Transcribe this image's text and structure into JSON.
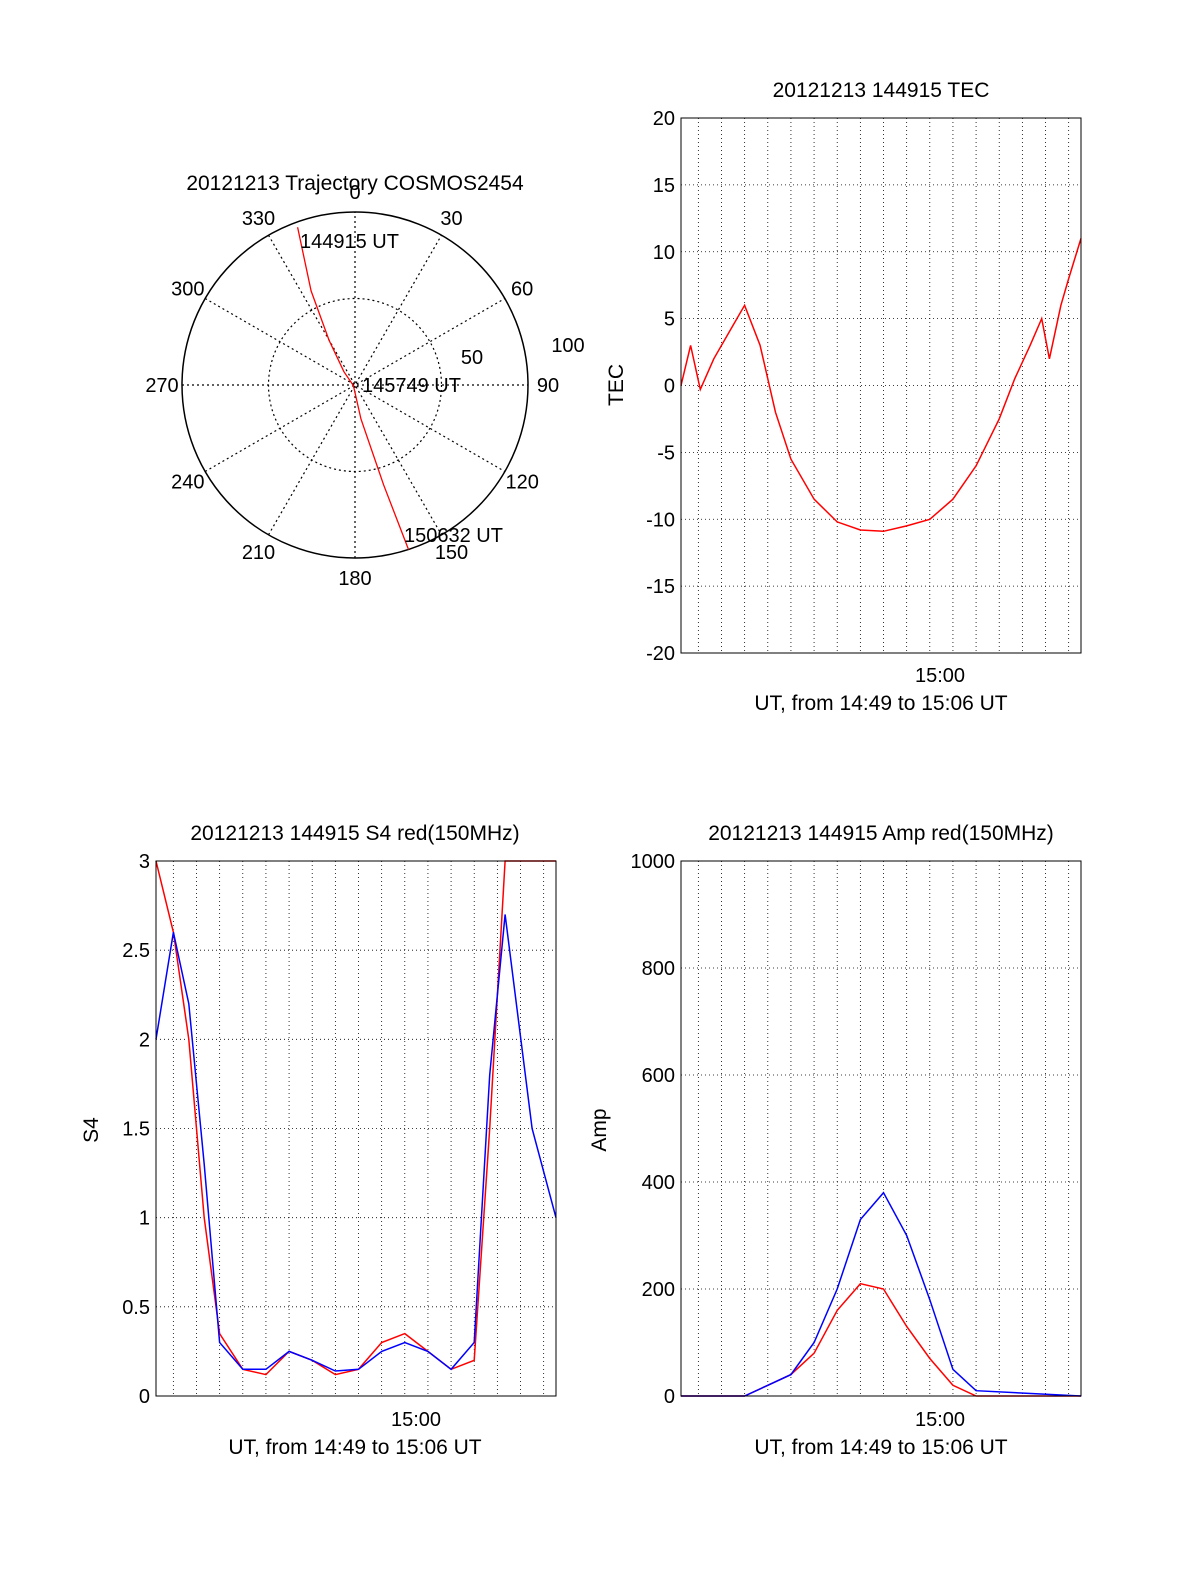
{
  "chart_data": [
    {
      "id": "polar",
      "type": "polar",
      "title": "20121213 Trajectory COSMOS2454",
      "angle_labels": [
        "0",
        "30",
        "60",
        "90",
        "120",
        "150",
        "180",
        "210",
        "240",
        "270",
        "300",
        "330"
      ],
      "radius_labels": [
        "50",
        "100"
      ],
      "trajectory": {
        "color": "#ff0000",
        "points": [
          {
            "azimuth": 340,
            "elevation_ring": 97
          },
          {
            "azimuth": 335,
            "elevation_ring": 60
          },
          {
            "azimuth": 330,
            "elevation_ring": 30
          },
          {
            "azimuth": 320,
            "elevation_ring": 10
          },
          {
            "azimuth": 250,
            "elevation_ring": 1
          },
          {
            "azimuth": 170,
            "elevation_ring": 20
          },
          {
            "azimuth": 164,
            "elevation_ring": 60
          },
          {
            "azimuth": 162,
            "elevation_ring": 100
          }
        ],
        "annotations": [
          {
            "text": "144915 UT"
          },
          {
            "text": "145749 UT"
          },
          {
            "text": "150632 UT"
          }
        ]
      }
    },
    {
      "id": "tec",
      "type": "line",
      "title": "20121213 144915 TEC",
      "xlabel": "UT, from 14:49 to 15:06 UT",
      "ylabel": "TEC",
      "x_tick_labels": [
        "15:00"
      ],
      "y_tick_labels": [
        "20",
        "15",
        "10",
        "5",
        "0",
        "-5",
        "-10",
        "-15",
        "-20"
      ],
      "ylim": [
        -20,
        20
      ],
      "grid": true,
      "series": [
        {
          "color": "#ff0000",
          "values": [
            {
              "x": "14:49:15",
              "y": 0
            },
            {
              "x": "14:49:40",
              "y": 3
            },
            {
              "x": "14:50:05",
              "y": -0.3
            },
            {
              "x": "14:50:40",
              "y": 2
            },
            {
              "x": "14:51:20",
              "y": 4
            },
            {
              "x": "14:52:00",
              "y": 6
            },
            {
              "x": "14:52:40",
              "y": 3
            },
            {
              "x": "14:53:20",
              "y": -2
            },
            {
              "x": "14:54:00",
              "y": -5.5
            },
            {
              "x": "14:55:00",
              "y": -8.5
            },
            {
              "x": "14:56:00",
              "y": -10.2
            },
            {
              "x": "14:57:00",
              "y": -10.8
            },
            {
              "x": "14:58:00",
              "y": -10.9
            },
            {
              "x": "14:59:00",
              "y": -10.5
            },
            {
              "x": "15:00:00",
              "y": -10
            },
            {
              "x": "15:01:00",
              "y": -8.5
            },
            {
              "x": "15:02:00",
              "y": -6
            },
            {
              "x": "15:03:00",
              "y": -2.5
            },
            {
              "x": "15:03:40",
              "y": 0.5
            },
            {
              "x": "15:04:20",
              "y": 3
            },
            {
              "x": "15:04:50",
              "y": 5
            },
            {
              "x": "15:05:10",
              "y": 2
            },
            {
              "x": "15:05:40",
              "y": 6
            },
            {
              "x": "15:06:00",
              "y": 8
            },
            {
              "x": "15:06:32",
              "y": 11
            }
          ]
        }
      ]
    },
    {
      "id": "s4",
      "type": "line",
      "title": "20121213 144915 S4 red(150MHz)",
      "xlabel": "UT, from 14:49 to 15:06 UT",
      "ylabel": "S4",
      "x_tick_labels": [
        "15:00"
      ],
      "y_tick_labels": [
        "3",
        "2.5",
        "2",
        "1.5",
        "1",
        "0.5",
        "0"
      ],
      "ylim": [
        0,
        3
      ],
      "grid": true,
      "series": [
        {
          "color": "#ff0000",
          "values": [
            {
              "x": "14:49:15",
              "y": 3
            },
            {
              "x": "14:50:00",
              "y": 2.6
            },
            {
              "x": "14:50:40",
              "y": 2.0
            },
            {
              "x": "14:51:20",
              "y": 1.0
            },
            {
              "x": "14:52:00",
              "y": 0.35
            },
            {
              "x": "14:53:00",
              "y": 0.15
            },
            {
              "x": "14:54:00",
              "y": 0.12
            },
            {
              "x": "14:55:00",
              "y": 0.25
            },
            {
              "x": "14:56:00",
              "y": 0.2
            },
            {
              "x": "14:57:00",
              "y": 0.12
            },
            {
              "x": "14:58:00",
              "y": 0.15
            },
            {
              "x": "14:59:00",
              "y": 0.3
            },
            {
              "x": "15:00:00",
              "y": 0.35
            },
            {
              "x": "15:01:00",
              "y": 0.25
            },
            {
              "x": "15:02:00",
              "y": 0.15
            },
            {
              "x": "15:03:00",
              "y": 0.2
            },
            {
              "x": "15:03:40",
              "y": 1.5
            },
            {
              "x": "15:04:20",
              "y": 3
            },
            {
              "x": "15:05:30",
              "y": 3
            },
            {
              "x": "15:06:32",
              "y": 3
            }
          ]
        },
        {
          "color": "#0000ff",
          "values": [
            {
              "x": "14:49:15",
              "y": 2.0
            },
            {
              "x": "14:50:00",
              "y": 2.6
            },
            {
              "x": "14:50:40",
              "y": 2.2
            },
            {
              "x": "14:51:20",
              "y": 1.3
            },
            {
              "x": "14:52:00",
              "y": 0.3
            },
            {
              "x": "14:53:00",
              "y": 0.15
            },
            {
              "x": "14:54:00",
              "y": 0.15
            },
            {
              "x": "14:55:00",
              "y": 0.25
            },
            {
              "x": "14:56:00",
              "y": 0.2
            },
            {
              "x": "14:57:00",
              "y": 0.14
            },
            {
              "x": "14:58:00",
              "y": 0.15
            },
            {
              "x": "14:59:00",
              "y": 0.25
            },
            {
              "x": "15:00:00",
              "y": 0.3
            },
            {
              "x": "15:01:00",
              "y": 0.25
            },
            {
              "x": "15:02:00",
              "y": 0.15
            },
            {
              "x": "15:03:00",
              "y": 0.3
            },
            {
              "x": "15:03:40",
              "y": 1.8
            },
            {
              "x": "15:04:20",
              "y": 2.7
            },
            {
              "x": "15:05:30",
              "y": 1.5
            },
            {
              "x": "15:06:32",
              "y": 1.0
            }
          ]
        }
      ]
    },
    {
      "id": "amp",
      "type": "line",
      "title": "20121213 144915 Amp red(150MHz)",
      "xlabel": "UT, from 14:49 to 15:06 UT",
      "ylabel": "Amp",
      "x_tick_labels": [
        "15:00"
      ],
      "y_tick_labels": [
        "1000",
        "800",
        "600",
        "400",
        "200",
        "0"
      ],
      "ylim": [
        0,
        1000
      ],
      "grid": true,
      "series": [
        {
          "color": "#ff0000",
          "values": [
            {
              "x": "14:49:15",
              "y": 0
            },
            {
              "x": "14:52:00",
              "y": 0
            },
            {
              "x": "14:53:00",
              "y": 20
            },
            {
              "x": "14:54:00",
              "y": 40
            },
            {
              "x": "14:55:00",
              "y": 80
            },
            {
              "x": "14:56:00",
              "y": 160
            },
            {
              "x": "14:57:00",
              "y": 210
            },
            {
              "x": "14:58:00",
              "y": 200
            },
            {
              "x": "14:59:00",
              "y": 130
            },
            {
              "x": "15:00:00",
              "y": 70
            },
            {
              "x": "15:01:00",
              "y": 20
            },
            {
              "x": "15:02:00",
              "y": 0
            },
            {
              "x": "15:06:32",
              "y": 0
            }
          ]
        },
        {
          "color": "#0000ff",
          "values": [
            {
              "x": "14:49:15",
              "y": 0
            },
            {
              "x": "14:52:00",
              "y": 0
            },
            {
              "x": "14:53:00",
              "y": 20
            },
            {
              "x": "14:54:00",
              "y": 40
            },
            {
              "x": "14:55:00",
              "y": 100
            },
            {
              "x": "14:56:00",
              "y": 200
            },
            {
              "x": "14:57:00",
              "y": 330
            },
            {
              "x": "14:58:00",
              "y": 380
            },
            {
              "x": "14:59:00",
              "y": 300
            },
            {
              "x": "15:00:00",
              "y": 180
            },
            {
              "x": "15:01:00",
              "y": 50
            },
            {
              "x": "15:02:00",
              "y": 10
            },
            {
              "x": "15:06:32",
              "y": 0
            }
          ]
        }
      ]
    }
  ]
}
